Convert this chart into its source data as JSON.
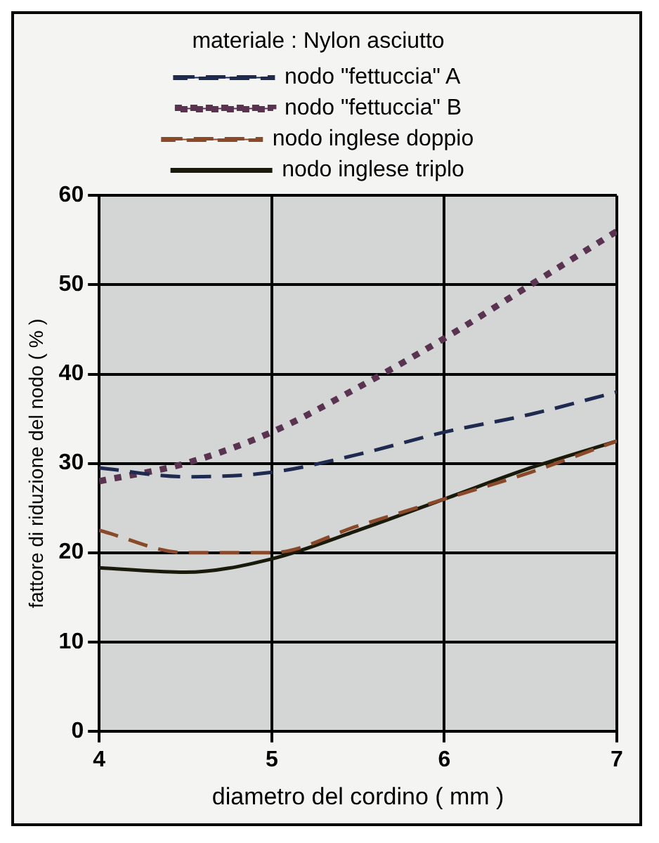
{
  "chart_data": {
    "type": "line",
    "title": "materiale : Nylon asciutto",
    "xlabel": "diametro del cordino ( mm )",
    "ylabel": "fattore di riduzione del nodo ( % )",
    "x": [
      4,
      4.5,
      5,
      5.5,
      6,
      6.5,
      7
    ],
    "series": [
      {
        "name": "nodo \"fettuccia\" A",
        "color": "#1f2a50",
        "line_style": "dashed",
        "values": [
          29.5,
          28.5,
          29,
          31,
          33.5,
          35.5,
          38
        ]
      },
      {
        "name": "nodo \"fettuccia\" B",
        "color": "#5a3350",
        "line_style": "dotted",
        "values": [
          28,
          30,
          33.5,
          38.5,
          44,
          50,
          56
        ]
      },
      {
        "name": "nodo inglese doppio",
        "color": "#8a4a2a",
        "line_style": "dashed",
        "values": [
          22.5,
          20,
          20,
          23,
          26,
          29,
          32.5
        ]
      },
      {
        "name": "nodo inglese triplo",
        "color": "#1a1a0a",
        "line_style": "solid",
        "values": [
          18.3,
          17.8,
          19.3,
          22.5,
          26,
          29.5,
          32.5
        ]
      }
    ],
    "xlim": [
      4,
      7
    ],
    "xticks": [
      4,
      5,
      6,
      7
    ],
    "ylim": [
      0,
      60
    ],
    "yticks": [
      0,
      10,
      20,
      30,
      40,
      50,
      60
    ],
    "grid": true,
    "legend": "top",
    "marker": "none"
  }
}
